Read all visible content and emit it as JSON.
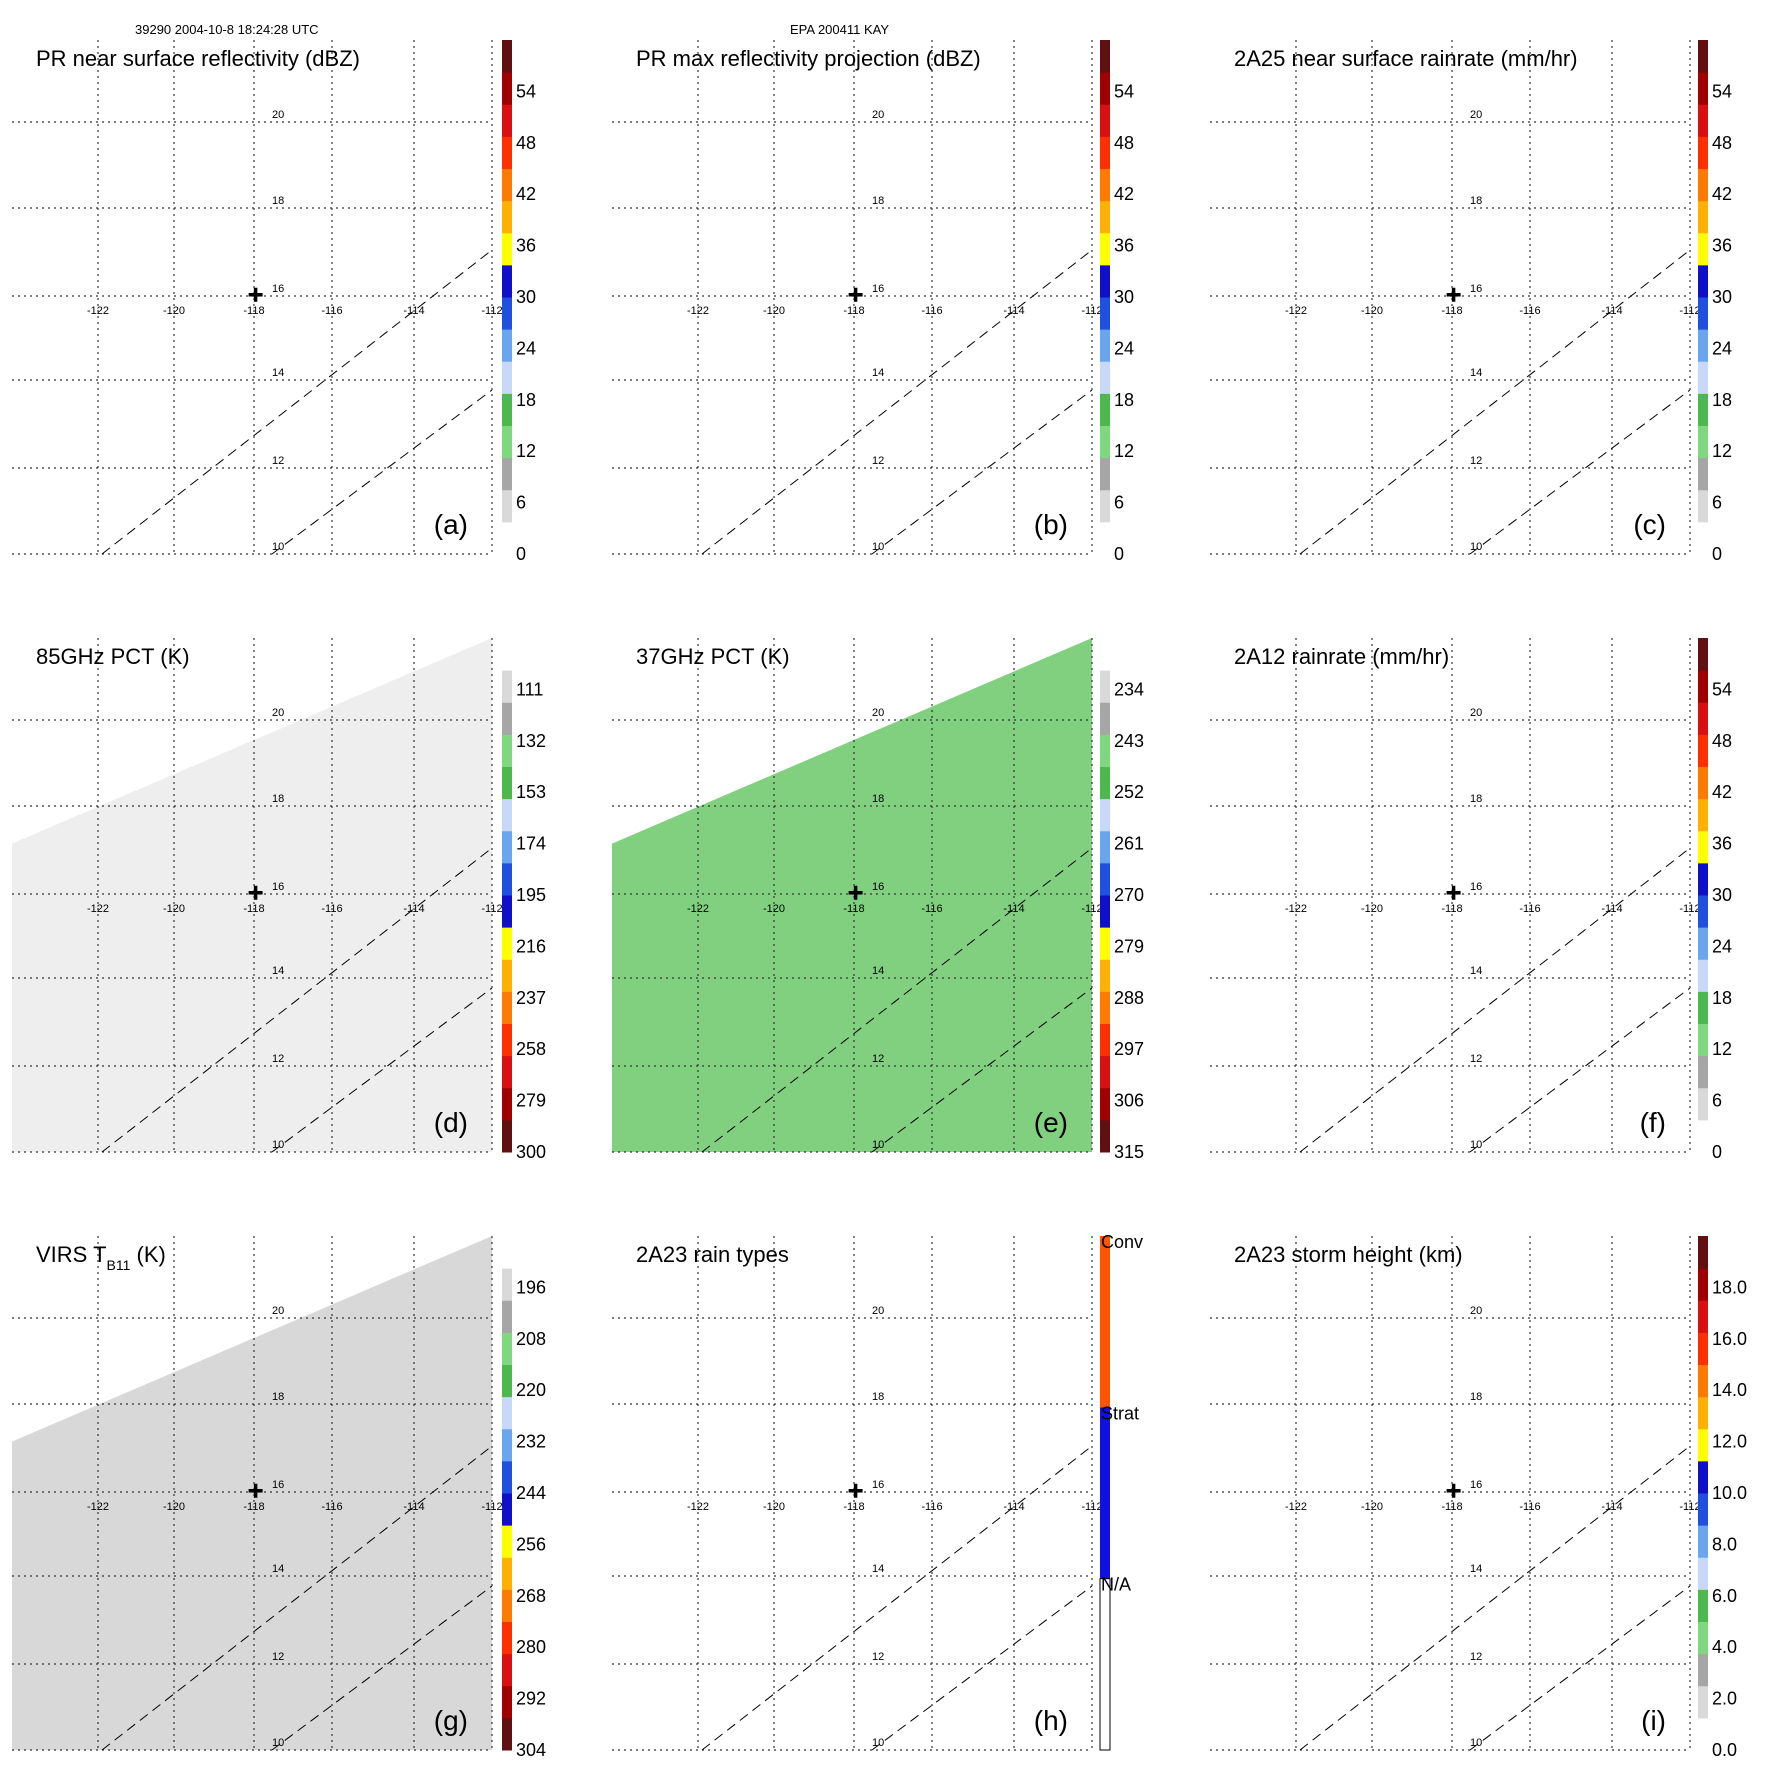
{
  "header": {
    "orbit_time": "39290 2004-10-8 18:24:28 UTC",
    "storm": "EPA 200411 KAY"
  },
  "grid": {
    "lon_labels": [
      "-122",
      "-120",
      "-118",
      "-116",
      "-114",
      "-112"
    ],
    "lat_labels": [
      "20",
      "18",
      "16",
      "14",
      "12",
      "10"
    ],
    "lon_values": [
      -122,
      -120,
      -118,
      -116,
      -114,
      -112
    ],
    "lat_values": [
      20,
      18,
      16,
      14,
      12,
      10
    ],
    "center": {
      "lon": -118,
      "lat": 16
    }
  },
  "palettes": {
    "standard": [
      "#ffffff",
      "#d9d9d9",
      "#a6a6a6",
      "#7fd77f",
      "#4db84d",
      "#c8d8f8",
      "#6aa6ee",
      "#1f50e0",
      "#1010c8",
      "#ffff00",
      "#ffb000",
      "#ff7a00",
      "#ff3000",
      "#d81010",
      "#a00000",
      "#601010"
    ],
    "reversed": [
      "#601010",
      "#a00000",
      "#d81010",
      "#ff3000",
      "#ff7a00",
      "#ffb000",
      "#ffff00",
      "#1010c8",
      "#1f50e0",
      "#6aa6ee",
      "#c8d8f8",
      "#4db84d",
      "#7fd77f",
      "#a6a6a6",
      "#d9d9d9",
      "#ffffff"
    ],
    "raintype": [
      "#ffffff",
      "#1010e0",
      "#ff5500"
    ]
  },
  "chart_data": [
    {
      "type": "heatmap",
      "title": "PR near surface reflectivity (dBZ)",
      "panel_label": "(a)",
      "colorbar": {
        "palette": "standard",
        "range": [
          0,
          60
        ],
        "ticks": [
          0,
          6,
          12,
          18,
          24,
          30,
          36,
          42,
          48,
          54
        ],
        "tick_labels": [
          "0",
          "6",
          "12",
          "18",
          "24",
          "30",
          "36",
          "42",
          "48",
          "54"
        ]
      },
      "swath": false,
      "swath_fill": "",
      "patches": []
    },
    {
      "type": "heatmap",
      "title": "PR max reflectivity projection (dBZ)",
      "panel_label": "(b)",
      "colorbar": {
        "palette": "standard",
        "range": [
          0,
          60
        ],
        "ticks": [
          0,
          6,
          12,
          18,
          24,
          30,
          36,
          42,
          48,
          54
        ],
        "tick_labels": [
          "0",
          "6",
          "12",
          "18",
          "24",
          "30",
          "36",
          "42",
          "48",
          "54"
        ]
      },
      "swath": false,
      "swath_fill": "",
      "patches": []
    },
    {
      "type": "heatmap",
      "title": "2A25 near surface rainrate (mm/hr)",
      "panel_label": "(c)",
      "colorbar": {
        "palette": "standard",
        "range": [
          0,
          60
        ],
        "ticks": [
          0,
          6,
          12,
          18,
          24,
          30,
          36,
          42,
          48,
          54
        ],
        "tick_labels": [
          "0",
          "6",
          "12",
          "18",
          "24",
          "30",
          "36",
          "42",
          "48",
          "54"
        ]
      },
      "swath": false,
      "swath_fill": "",
      "patches": []
    },
    {
      "type": "heatmap",
      "title": "85GHz PCT (K)",
      "panel_label": "(d)",
      "colorbar": {
        "palette": "reversed",
        "range": [
          90,
          300
        ],
        "ticks": [
          300,
          279,
          258,
          237,
          216,
          195,
          174,
          153,
          132,
          111
        ],
        "tick_labels": [
          "300",
          "279",
          "258",
          "237",
          "216",
          "195",
          "174",
          "153",
          "132",
          "111"
        ]
      },
      "swath": true,
      "swath_fill": "#eeeeee",
      "patches": []
    },
    {
      "type": "heatmap",
      "title": "37GHz PCT (K)",
      "panel_label": "(e)",
      "colorbar": {
        "palette": "reversed",
        "range": [
          225,
          315
        ],
        "ticks": [
          315,
          306,
          297,
          288,
          279,
          270,
          261,
          252,
          243,
          234
        ],
        "tick_labels": [
          "315",
          "306",
          "297",
          "288",
          "279",
          "270",
          "261",
          "252",
          "243",
          "234"
        ]
      },
      "swath": true,
      "swath_fill": "#80d080",
      "patches": []
    },
    {
      "type": "heatmap",
      "title": "2A12 rainrate (mm/hr)",
      "panel_label": "(f)",
      "colorbar": {
        "palette": "standard",
        "range": [
          0,
          60
        ],
        "ticks": [
          0,
          6,
          12,
          18,
          24,
          30,
          36,
          42,
          48,
          54
        ],
        "tick_labels": [
          "0",
          "6",
          "12",
          "18",
          "24",
          "30",
          "36",
          "42",
          "48",
          "54"
        ]
      },
      "swath": false,
      "swath_fill": "",
      "patches": []
    },
    {
      "type": "heatmap",
      "title_main": "VIRS T",
      "title_sub": "B11",
      "title_tail": " (K)",
      "panel_label": "(g)",
      "colorbar": {
        "palette": "reversed",
        "range": [
          184,
          304
        ],
        "ticks": [
          304,
          292,
          280,
          268,
          256,
          244,
          232,
          220,
          208,
          196
        ],
        "tick_labels": [
          "304",
          "292",
          "280",
          "268",
          "256",
          "244",
          "232",
          "220",
          "208",
          "196"
        ]
      },
      "swath": true,
      "swath_fill": "#d8d8d8",
      "patches": []
    },
    {
      "type": "heatmap",
      "title": "2A23 rain types",
      "panel_label": "(h)",
      "colorbar": {
        "palette": "raintype",
        "range": [
          0,
          3
        ],
        "ticks": [
          1,
          2,
          3
        ],
        "tick_labels": [
          "N/A",
          "Strat",
          "Conv"
        ]
      },
      "swath": false,
      "swath_fill": "",
      "patches": []
    },
    {
      "type": "heatmap",
      "title": "2A23 storm height (km)",
      "panel_label": "(i)",
      "colorbar": {
        "palette": "standard",
        "range": [
          0,
          20
        ],
        "ticks": [
          0,
          2,
          4,
          6,
          8,
          10,
          12,
          14,
          16,
          18
        ],
        "tick_labels": [
          "0.0",
          "2.0",
          "4.0",
          "6.0",
          "8.0",
          "10.0",
          "12.0",
          "14.0",
          "16.0",
          "18.0"
        ]
      },
      "swath": false,
      "swath_fill": "",
      "patches": []
    }
  ]
}
